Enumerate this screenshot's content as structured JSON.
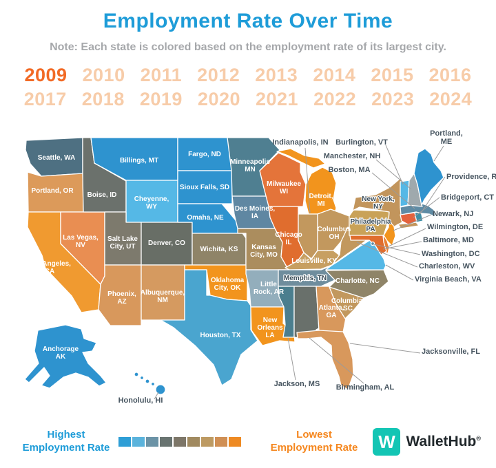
{
  "header": {
    "title": "Employment Rate Over Time",
    "note": "Note: Each state is colored based on the employment rate of its largest city."
  },
  "years": {
    "selected": "2009",
    "rows": [
      [
        "2009",
        "2010",
        "2011",
        "2012",
        "2013",
        "2014",
        "2015",
        "2016"
      ],
      [
        "2017",
        "2018",
        "2019",
        "2020",
        "2021",
        "2022",
        "2023",
        "2024"
      ]
    ]
  },
  "colors": {
    "title_blue": "#1e9cd8",
    "note_gray": "#a6a8ab",
    "year_selected": "#f26a25",
    "year_idle": "#f7cca9",
    "highest_blue": "#1e9cd8",
    "lowest_orange": "#f5871f",
    "leader_gray": "#9b9b9b",
    "logo_teal": "#13c5b4",
    "logo_text": "#20272b"
  },
  "legend": {
    "highest_label": [
      "Highest",
      "Employment Rate"
    ],
    "lowest_label": [
      "Lowest",
      "Employment Rate"
    ],
    "scale": [
      "#2e9ed6",
      "#5ab3dc",
      "#6b93a6",
      "#697471",
      "#7d7668",
      "#a18a60",
      "#bd9a62",
      "#d08f54",
      "#ee8a23"
    ]
  },
  "branding": {
    "logo_letter": "W",
    "name": "WalletHub",
    "registered": "®"
  },
  "map": {
    "states": [
      {
        "id": "WA",
        "city": "Seattle, WA",
        "label_lines": [
          "Seattle, WA"
        ],
        "color": "#4e7082"
      },
      {
        "id": "OR",
        "city": "Portland, OR",
        "label_lines": [
          "Portland, OR"
        ],
        "color": "#dc9a5a"
      },
      {
        "id": "CA",
        "city": "Los Angeles, CA",
        "label_lines": [
          "Los Angeles,",
          "CA"
        ],
        "color": "#f09a30"
      },
      {
        "id": "NV",
        "city": "Las Vegas, NV",
        "label_lines": [
          "Las Vegas,",
          "NV"
        ],
        "color": "#e98e52"
      },
      {
        "id": "ID",
        "city": "Boise, ID",
        "label_lines": [
          "Boise, ID"
        ],
        "color": "#6b716c"
      },
      {
        "id": "MT",
        "city": "Billings, MT",
        "label_lines": [
          "Billings, MT"
        ],
        "color": "#2e93cf"
      },
      {
        "id": "WY",
        "city": "Cheyenne, WY",
        "label_lines": [
          "Cheyenne,",
          "WY"
        ],
        "color": "#55b8e6"
      },
      {
        "id": "UT",
        "city": "Salt Lake City, UT",
        "label_lines": [
          "Salt Lake",
          "City, UT"
        ],
        "color": "#7d7a6d"
      },
      {
        "id": "CO",
        "city": "Denver, CO",
        "label_lines": [
          "Denver, CO"
        ],
        "color": "#686e66"
      },
      {
        "id": "AZ",
        "city": "Phoenix, AZ",
        "label_lines": [
          "Phoenix,",
          "AZ"
        ],
        "color": "#d8985c"
      },
      {
        "id": "NM",
        "city": "Albuquerque, NM",
        "label_lines": [
          "Albuquerque,",
          "NM"
        ],
        "color": "#d59a60"
      },
      {
        "id": "ND",
        "city": "Fargo, ND",
        "label_lines": [
          "Fargo, ND"
        ],
        "color": "#2e93cf"
      },
      {
        "id": "SD",
        "city": "Sioux Falls, SD",
        "label_lines": [
          "Sioux Falls, SD"
        ],
        "color": "#2e93cf"
      },
      {
        "id": "NE",
        "city": "Omaha, NE",
        "label_lines": [
          "Omaha, NE"
        ],
        "color": "#2e93cf"
      },
      {
        "id": "KS",
        "city": "Wichita, KS",
        "label_lines": [
          "Wichita, KS"
        ],
        "color": "#8f8468"
      },
      {
        "id": "OK",
        "city": "Oklahoma City, OK",
        "label_lines": [
          "Oklahoma",
          "City, OK"
        ],
        "color": "#f2941d"
      },
      {
        "id": "TX",
        "city": "Houston, TX",
        "label_lines": [
          "Houston, TX"
        ],
        "color": "#4aa5cf"
      },
      {
        "id": "MN",
        "city": "Minneapolis, MN",
        "label_lines": [
          "Minneapolis",
          "MN"
        ],
        "color": "#4f7f91"
      },
      {
        "id": "IA",
        "city": "Des Moines, IA",
        "label_lines": [
          "Des Moines,",
          "IA"
        ],
        "color": "#5f87a2"
      },
      {
        "id": "MO",
        "city": "Kansas City, MO",
        "label_lines": [
          "Kansas",
          "City, MO"
        ],
        "color": "#ab8d5e"
      },
      {
        "id": "AR",
        "city": "Little Rock, AR",
        "label_lines": [
          "Little",
          "Rock, AR"
        ],
        "color": "#93aebc"
      },
      {
        "id": "LA",
        "city": "New Orleans, LA",
        "label_lines": [
          "New",
          "Orleans",
          "LA"
        ],
        "color": "#f2941d"
      },
      {
        "id": "WI",
        "city": "Milwaukee, WI",
        "label_lines": [
          "Milwaukee",
          "WI"
        ],
        "color": "#e4743a"
      },
      {
        "id": "IL",
        "city": "Chicago, IL",
        "label_lines": [
          "Chicago",
          "IL"
        ],
        "color": "#e06d2e"
      },
      {
        "id": "MI",
        "city": "Detroit, MI",
        "label_lines": [
          "Detroit,",
          "MI"
        ],
        "color": "#f2941d"
      },
      {
        "id": "IN",
        "city": "Indianapolis, IN",
        "label_lines": null,
        "color": "#c2985e"
      },
      {
        "id": "OH",
        "city": "Columbus, OH",
        "label_lines": [
          "Columbus",
          "OH"
        ],
        "color": "#c2985e"
      },
      {
        "id": "KY",
        "city": "Louisville, KY",
        "label_lines": [
          "Louisville, KY"
        ],
        "color": "#c79f61"
      },
      {
        "id": "TN",
        "city": "Memphis, TN",
        "label_lines": [
          "Memphis, TN"
        ],
        "label_style": "dark",
        "color": "#6f8d9d"
      },
      {
        "id": "MS",
        "city": "Jackson, MS",
        "label_lines": null,
        "color": "#4b7e8e"
      },
      {
        "id": "AL",
        "city": "Birmingham, AL",
        "label_lines": null,
        "color": "#69706b"
      },
      {
        "id": "GA",
        "city": "Atlanta, GA",
        "label_lines": [
          "Atlanta,",
          "GA"
        ],
        "color": "#d8985c"
      },
      {
        "id": "FL",
        "city": "Jacksonville, FL",
        "label_lines": null,
        "color": "#d8985c"
      },
      {
        "id": "SC",
        "city": "Columbia, SC",
        "label_lines": [
          "Columbia,",
          "SC"
        ],
        "color": "#c2985e"
      },
      {
        "id": "NC",
        "city": "Charlotte, NC",
        "label_lines": [
          "Charlotte, NC"
        ],
        "color": "#8f8468"
      },
      {
        "id": "VA",
        "city": "Virginia Beach, VA",
        "label_lines": null,
        "color": "#55b8e6"
      },
      {
        "id": "WV",
        "city": "Charleston, WV",
        "label_lines": null,
        "color": "#c2985e"
      },
      {
        "id": "PA",
        "city": "Philadelphia, PA",
        "label_lines": [
          "Philadelphia",
          "PA"
        ],
        "label_style": "dark",
        "color": "#c9a258"
      },
      {
        "id": "NY",
        "city": "New York, NY",
        "label_lines": [
          "New York,",
          "NY"
        ],
        "label_style": "dark",
        "color": "#c2955c"
      },
      {
        "id": "NJ",
        "city": "Newark, NJ",
        "label_lines": null,
        "color": "#f2941d"
      },
      {
        "id": "DE",
        "city": "Wilmington, DE",
        "label_lines": null,
        "color": "#e87f33"
      },
      {
        "id": "MD",
        "city": "Baltimore, MD",
        "label_lines": null,
        "color": "#e06d2e"
      },
      {
        "id": "DC",
        "city": "Washington, DC",
        "label_lines": null,
        "color": "#5f8ba4"
      },
      {
        "id": "CT",
        "city": "Bridgeport, CT",
        "label_lines": null,
        "color": "#e4623c"
      },
      {
        "id": "RI",
        "city": "Providence, RI",
        "label_lines": null,
        "color": "#3f8fa6"
      },
      {
        "id": "MA",
        "city": "Boston, MA",
        "label_lines": null,
        "color": "#5f8ba4"
      },
      {
        "id": "VT",
        "city": "Burlington, VT",
        "label_lines": null,
        "color": "#55b8e6"
      },
      {
        "id": "NH",
        "city": "Manchester, NH",
        "label_lines": null,
        "color": "#9fa9ad"
      },
      {
        "id": "ME",
        "city": "Portland, ME",
        "label_lines": null,
        "color": "#2e93cf"
      },
      {
        "id": "AK",
        "city": "Anchorage, AK",
        "label_lines": [
          "Anchorage",
          "AK"
        ],
        "color": "#2e93cf"
      },
      {
        "id": "HI",
        "city": "Honolulu, HI",
        "label_lines": null,
        "color": "#2e93cf"
      }
    ],
    "callouts": [
      {
        "id": "IN",
        "lines": [
          "Indianapolis, IN"
        ]
      },
      {
        "id": "VT",
        "lines": [
          "Burlington, VT"
        ]
      },
      {
        "id": "NH",
        "lines": [
          "Manchester, NH"
        ]
      },
      {
        "id": "MA",
        "lines": [
          "Boston, MA"
        ]
      },
      {
        "id": "RI",
        "lines": [
          "Providence, RI"
        ]
      },
      {
        "id": "CT",
        "lines": [
          "Bridgeport, CT"
        ]
      },
      {
        "id": "NJ",
        "lines": [
          "Newark, NJ"
        ]
      },
      {
        "id": "DE",
        "lines": [
          "Wilmington, DE"
        ]
      },
      {
        "id": "MD",
        "lines": [
          "Baltimore, MD"
        ]
      },
      {
        "id": "DC",
        "lines": [
          "Washington, DC"
        ]
      },
      {
        "id": "WV",
        "lines": [
          "Charleston, WV"
        ]
      },
      {
        "id": "VA",
        "lines": [
          "Virginia Beach, VA"
        ]
      },
      {
        "id": "ME",
        "lines": [
          "Portland,",
          "ME"
        ]
      },
      {
        "id": "FL",
        "lines": [
          "Jacksonville, FL"
        ]
      },
      {
        "id": "AL",
        "lines": [
          "Birmingham, AL"
        ]
      },
      {
        "id": "MS",
        "lines": [
          "Jackson, MS"
        ]
      },
      {
        "id": "HI",
        "lines": [
          "Honolulu, HI"
        ]
      }
    ]
  }
}
